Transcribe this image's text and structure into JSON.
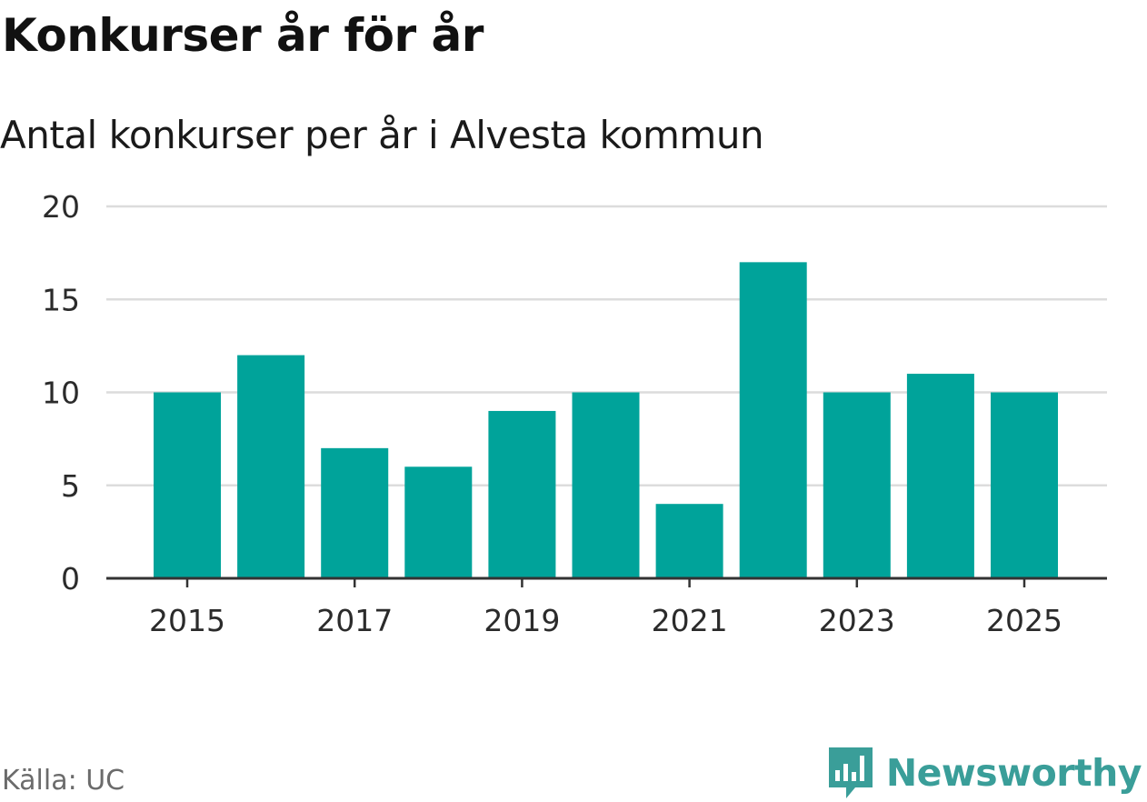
{
  "header": {
    "title": "Konkurser år för år",
    "subtitle": "Antal konkurser per år i Alvesta kommun"
  },
  "footer": {
    "source": "Källa: UC",
    "brand": "Newsworthy",
    "brand_icon": "newsworthy-logo-icon"
  },
  "colors": {
    "bar": "#00a39a",
    "grid": "#dcdcdc",
    "axis": "#333333",
    "brand": "#3a9e99"
  },
  "chart_data": {
    "type": "bar",
    "title": "Konkurser år för år",
    "subtitle": "Antal konkurser per år i Alvesta kommun",
    "xlabel": "",
    "ylabel": "",
    "categories": [
      2015,
      2016,
      2017,
      2018,
      2019,
      2020,
      2021,
      2022,
      2023,
      2024,
      2025
    ],
    "values": [
      10,
      12,
      7,
      6,
      9,
      10,
      4,
      17,
      10,
      11,
      10
    ],
    "ylim": [
      0,
      20
    ],
    "y_ticks": [
      "0",
      "5",
      "10",
      "15",
      "20"
    ],
    "x_tick_labels": [
      "2015",
      "2017",
      "2019",
      "2021",
      "2023",
      "2025"
    ],
    "grid": true,
    "legend": "none"
  }
}
